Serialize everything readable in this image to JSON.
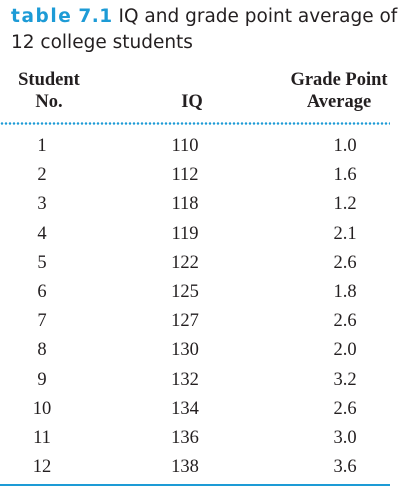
{
  "caption": {
    "tag": "table",
    "number": "7.1",
    "text": "IQ and grade point average of 12 college students"
  },
  "table": {
    "headers": {
      "student_line1": "Student",
      "student_line2": "No.",
      "iq": "IQ",
      "gpa_line1": "Grade Point",
      "gpa_line2": "Average"
    },
    "rows": [
      {
        "no": "1",
        "iq": "110",
        "gpa": "1.0"
      },
      {
        "no": "2",
        "iq": "112",
        "gpa": "1.6"
      },
      {
        "no": "3",
        "iq": "118",
        "gpa": "1.2"
      },
      {
        "no": "4",
        "iq": "119",
        "gpa": "2.1"
      },
      {
        "no": "5",
        "iq": "122",
        "gpa": "2.6"
      },
      {
        "no": "6",
        "iq": "125",
        "gpa": "1.8"
      },
      {
        "no": "7",
        "iq": "127",
        "gpa": "2.6"
      },
      {
        "no": "8",
        "iq": "130",
        "gpa": "2.0"
      },
      {
        "no": "9",
        "iq": "132",
        "gpa": "3.2"
      },
      {
        "no": "10",
        "iq": "134",
        "gpa": "2.6"
      },
      {
        "no": "11",
        "iq": "136",
        "gpa": "3.0"
      },
      {
        "no": "12",
        "iq": "138",
        "gpa": "3.6"
      }
    ]
  },
  "colors": {
    "accent": "#1d9bd6",
    "text": "#231f20"
  }
}
